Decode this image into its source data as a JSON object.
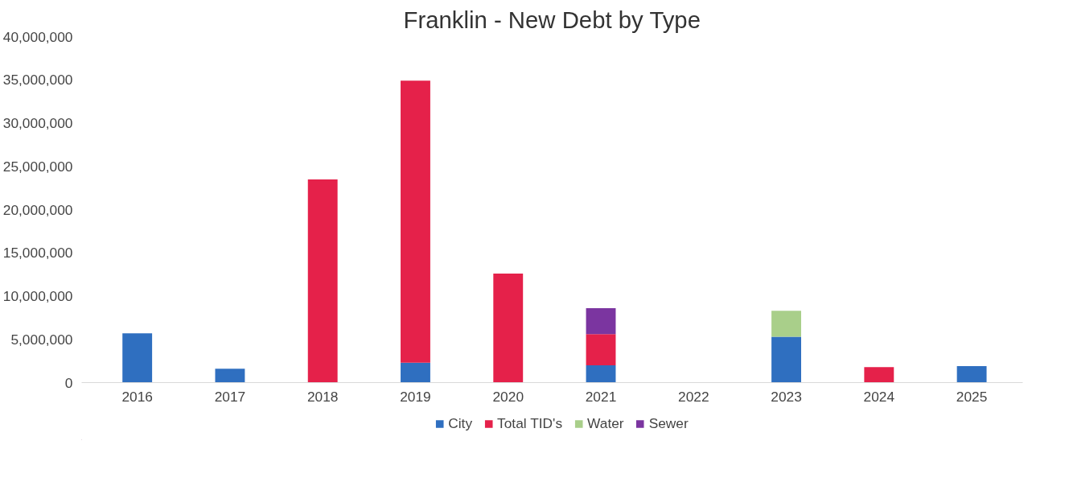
{
  "chart_data": {
    "type": "bar",
    "title": "Franklin - New Debt by Type",
    "stacked": true,
    "categories": [
      "2016",
      "2017",
      "2018",
      "2019",
      "2020",
      "2021",
      "2022",
      "2023",
      "2024",
      "2025"
    ],
    "series": [
      {
        "name": "City",
        "color": "#2f6fc0",
        "values": [
          5700000,
          1600000,
          null,
          2300000,
          null,
          2000000,
          null,
          5300000,
          null,
          1900000
        ]
      },
      {
        "name": "Total TID's",
        "color": "#e5214a",
        "values": [
          null,
          null,
          23500000,
          32600000,
          12600000,
          3600000,
          null,
          null,
          1800000,
          null
        ]
      },
      {
        "name": "Water",
        "color": "#a9cf8a",
        "values": [
          null,
          null,
          null,
          null,
          null,
          null,
          null,
          3000000,
          null,
          null
        ]
      },
      {
        "name": "Sewer",
        "color": "#7b35a0",
        "values": [
          null,
          null,
          null,
          null,
          null,
          3000000,
          null,
          null,
          null,
          null
        ]
      }
    ],
    "ylim": [
      0,
      40000000
    ],
    "yticks": [
      {
        "value": 0,
        "label": "0"
      },
      {
        "value": 5000000,
        "label": "5,000,000"
      },
      {
        "value": 10000000,
        "label": "10,000,000"
      },
      {
        "value": 15000000,
        "label": "15,000,000"
      },
      {
        "value": 20000000,
        "label": "20,000,000"
      },
      {
        "value": 25000000,
        "label": "25,000,000"
      },
      {
        "value": 30000000,
        "label": "30,000,000"
      },
      {
        "value": 35000000,
        "label": "35,000,000"
      },
      {
        "value": 40000000,
        "label": "40,000,000"
      }
    ],
    "legend": "bottom"
  }
}
